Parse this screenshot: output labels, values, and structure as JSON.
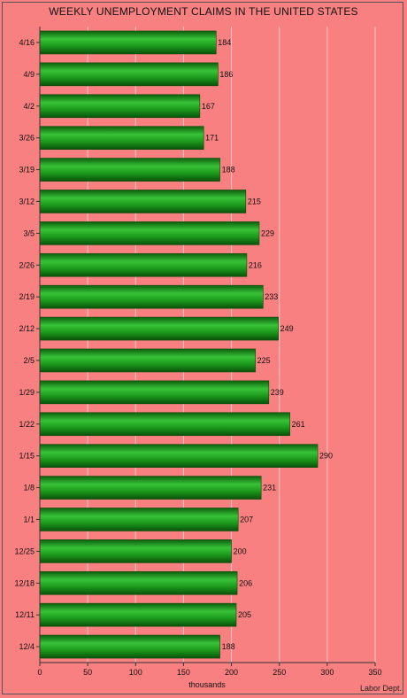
{
  "chart_data": {
    "type": "bar",
    "orientation": "horizontal",
    "title": "WEEKLY UNEMPLOYMENT CLAIMS IN THE UNITED STATES",
    "xlabel": "thousands",
    "ylabel": "",
    "xlim": [
      0,
      350
    ],
    "xticks": [
      0,
      50,
      100,
      150,
      200,
      250,
      300,
      350
    ],
    "grid": true,
    "categories": [
      "4/16",
      "4/9",
      "4/2",
      "3/26",
      "3/19",
      "3/12",
      "3/5",
      "2/26",
      "2/19",
      "2/12",
      "2/5",
      "1/29",
      "1/22",
      "1/15",
      "1/8",
      "1/1",
      "12/25",
      "12/18",
      "12/11",
      "12/4"
    ],
    "values": [
      184,
      186,
      167,
      171,
      188,
      215,
      229,
      216,
      233,
      249,
      225,
      239,
      261,
      290,
      231,
      207,
      200,
      206,
      205,
      188
    ],
    "source": "Labor Dept.",
    "colors": {
      "background": "#f98080",
      "bar": "#1e9a1e",
      "grid": "#f4c7c7"
    }
  }
}
